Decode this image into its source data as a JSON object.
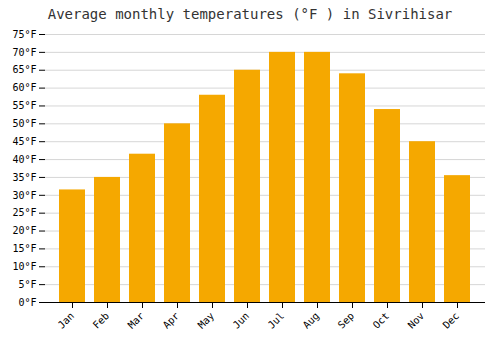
{
  "chart_data": {
    "type": "bar",
    "title": "Average monthly temperatures (°F ) in Sivrihisar",
    "categories": [
      "Jan",
      "Feb",
      "Mar",
      "Apr",
      "May",
      "Jun",
      "Jul",
      "Aug",
      "Sep",
      "Oct",
      "Nov",
      "Dec"
    ],
    "values": [
      31.5,
      35.0,
      41.5,
      50.0,
      58.0,
      65.0,
      70.0,
      70.0,
      64.0,
      54.0,
      45.0,
      35.5
    ],
    "color": "#F5A800",
    "ylim": [
      0,
      75
    ],
    "yticks": [
      {
        "value": 0,
        "label": "0°F"
      },
      {
        "value": 5,
        "label": "5°F"
      },
      {
        "value": 10,
        "label": "10°F"
      },
      {
        "value": 15,
        "label": "15°F"
      },
      {
        "value": 20,
        "label": "20°F"
      },
      {
        "value": 25,
        "label": "25°F"
      },
      {
        "value": 30,
        "label": "30°F"
      },
      {
        "value": 35,
        "label": "35°F"
      },
      {
        "value": 40,
        "label": "40°F"
      },
      {
        "value": 45,
        "label": "45°F"
      },
      {
        "value": 50,
        "label": "50°F"
      },
      {
        "value": 55,
        "label": "55°F"
      },
      {
        "value": 60,
        "label": "60°F"
      },
      {
        "value": 65,
        "label": "65°F"
      },
      {
        "value": 70,
        "label": "70°F"
      },
      {
        "value": 75,
        "label": "75°F"
      }
    ],
    "grid": true
  }
}
